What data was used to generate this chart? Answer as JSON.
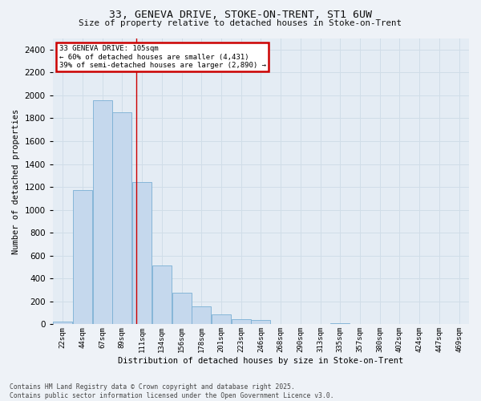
{
  "title_line1": "33, GENEVA DRIVE, STOKE-ON-TRENT, ST1 6UW",
  "title_line2": "Size of property relative to detached houses in Stoke-on-Trent",
  "xlabel": "Distribution of detached houses by size in Stoke-on-Trent",
  "ylabel": "Number of detached properties",
  "bin_labels": [
    "22sqm",
    "44sqm",
    "67sqm",
    "89sqm",
    "111sqm",
    "134sqm",
    "156sqm",
    "178sqm",
    "201sqm",
    "223sqm",
    "246sqm",
    "268sqm",
    "290sqm",
    "313sqm",
    "335sqm",
    "357sqm",
    "380sqm",
    "402sqm",
    "424sqm",
    "447sqm",
    "469sqm"
  ],
  "bar_values": [
    25,
    1170,
    1960,
    1850,
    1240,
    515,
    275,
    155,
    85,
    43,
    35,
    0,
    0,
    0,
    10,
    0,
    0,
    0,
    0,
    0,
    0
  ],
  "bar_color": "#c5d8ed",
  "bar_edge_color": "#7aafd4",
  "grid_color": "#d0dde8",
  "annotation_text": "33 GENEVA DRIVE: 105sqm\n← 60% of detached houses are smaller (4,431)\n39% of semi-detached houses are larger (2,890) →",
  "annotation_box_color": "#ffffff",
  "annotation_box_edge": "#cc0000",
  "vline_color": "#cc0000",
  "ylim": [
    0,
    2500
  ],
  "yticks": [
    0,
    200,
    400,
    600,
    800,
    1000,
    1200,
    1400,
    1600,
    1800,
    2000,
    2200,
    2400
  ],
  "footnote": "Contains HM Land Registry data © Crown copyright and database right 2025.\nContains public sector information licensed under the Open Government Licence v3.0.",
  "bg_color": "#eef2f7",
  "plot_bg_color": "#e4ecf4"
}
